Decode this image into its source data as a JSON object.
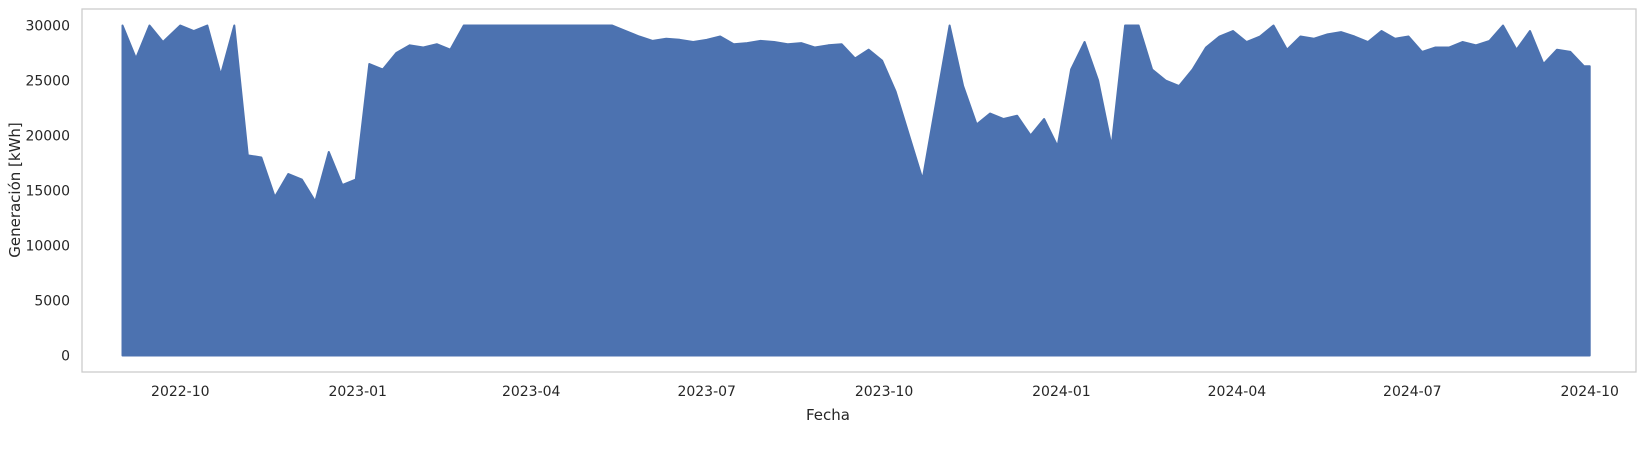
{
  "chart_data": {
    "type": "line",
    "title": "",
    "xlabel": "Fecha",
    "ylabel": "Generación [kWh]",
    "xlim": [
      "2022-08-11",
      "2024-10-25"
    ],
    "ylim": [
      -1500,
      31500
    ],
    "x_ticks": [
      "2022-10",
      "2023-01",
      "2023-04",
      "2023-07",
      "2023-10",
      "2024-01",
      "2024-04",
      "2024-07",
      "2024-10"
    ],
    "y_ticks": [
      0,
      5000,
      10000,
      15000,
      20000,
      25000,
      30000
    ],
    "grid": false,
    "legend": "none",
    "colors": {
      "series": "#4c72b0",
      "frame": "#cccccc",
      "background": "#ffffff"
    },
    "series": [
      {
        "min_value": 0,
        "x": [
          "2022-09-01",
          "2022-09-08",
          "2022-09-15",
          "2022-09-22",
          "2022-10-01",
          "2022-10-08",
          "2022-10-15",
          "2022-10-22",
          "2022-10-29",
          "2022-11-05",
          "2022-11-12",
          "2022-11-19",
          "2022-11-26",
          "2022-12-03",
          "2022-12-10",
          "2022-12-17",
          "2022-12-24",
          "2022-12-31",
          "2023-01-07",
          "2023-01-14",
          "2023-01-21",
          "2023-01-28",
          "2023-02-04",
          "2023-02-11",
          "2023-02-18",
          "2023-02-25",
          "2023-03-04",
          "2023-03-11",
          "2023-03-18",
          "2023-03-25",
          "2023-04-01",
          "2023-04-08",
          "2023-04-15",
          "2023-04-22",
          "2023-04-29",
          "2023-05-06",
          "2023-05-13",
          "2023-05-20",
          "2023-05-27",
          "2023-06-03",
          "2023-06-10",
          "2023-06-17",
          "2023-06-24",
          "2023-07-01",
          "2023-07-08",
          "2023-07-15",
          "2023-07-22",
          "2023-07-29",
          "2023-08-05",
          "2023-08-12",
          "2023-08-19",
          "2023-08-26",
          "2023-09-02",
          "2023-09-09",
          "2023-09-16",
          "2023-09-23",
          "2023-09-30",
          "2023-10-07",
          "2023-10-14",
          "2023-10-21",
          "2023-10-28",
          "2023-11-04",
          "2023-11-11",
          "2023-11-18",
          "2023-11-25",
          "2023-12-02",
          "2023-12-09",
          "2023-12-16",
          "2023-12-23",
          "2023-12-30",
          "2024-01-06",
          "2024-01-13",
          "2024-01-20",
          "2024-01-27",
          "2024-02-03",
          "2024-02-10",
          "2024-02-17",
          "2024-02-24",
          "2024-03-02",
          "2024-03-09",
          "2024-03-16",
          "2024-03-23",
          "2024-03-30",
          "2024-04-06",
          "2024-04-13",
          "2024-04-20",
          "2024-04-27",
          "2024-05-04",
          "2024-05-11",
          "2024-05-18",
          "2024-05-25",
          "2024-06-01",
          "2024-06-08",
          "2024-06-15",
          "2024-06-22",
          "2024-06-29",
          "2024-07-06",
          "2024-07-13",
          "2024-07-20",
          "2024-07-27",
          "2024-08-03",
          "2024-08-10",
          "2024-08-17",
          "2024-08-24",
          "2024-08-31",
          "2024-09-07",
          "2024-09-14",
          "2024-09-21",
          "2024-09-28",
          "2024-10-01"
        ],
        "values": [
          30000,
          27000,
          30000,
          28500,
          30000,
          29500,
          30000,
          25500,
          30000,
          18200,
          18000,
          14400,
          16500,
          16000,
          14000,
          18500,
          15500,
          16000,
          26500,
          26000,
          27500,
          28200,
          28000,
          28300,
          27800,
          30000,
          30000,
          30000,
          30000,
          30000,
          30000,
          30000,
          30000,
          30000,
          30000,
          30000,
          30000,
          29500,
          29000,
          28600,
          28800,
          28700,
          28500,
          28700,
          29000,
          28300,
          28400,
          28600,
          28500,
          28300,
          28400,
          28000,
          28200,
          28300,
          27000,
          27800,
          26800,
          24000,
          20000,
          16000,
          23000,
          30000,
          24500,
          21000,
          22000,
          21500,
          21800,
          20000,
          21500,
          19000,
          26000,
          28500,
          25000,
          19000,
          30000,
          30000,
          26000,
          25000,
          24500,
          26000,
          28000,
          29000,
          29500,
          28500,
          29000,
          30000,
          27800,
          29000,
          28800,
          29200,
          29400,
          29000,
          28500,
          29500,
          28800,
          29000,
          27600,
          28000,
          28000,
          28500,
          28200,
          28600,
          30000,
          27800,
          29500,
          26500,
          27800,
          27600,
          26300,
          26300
        ]
      }
    ]
  }
}
